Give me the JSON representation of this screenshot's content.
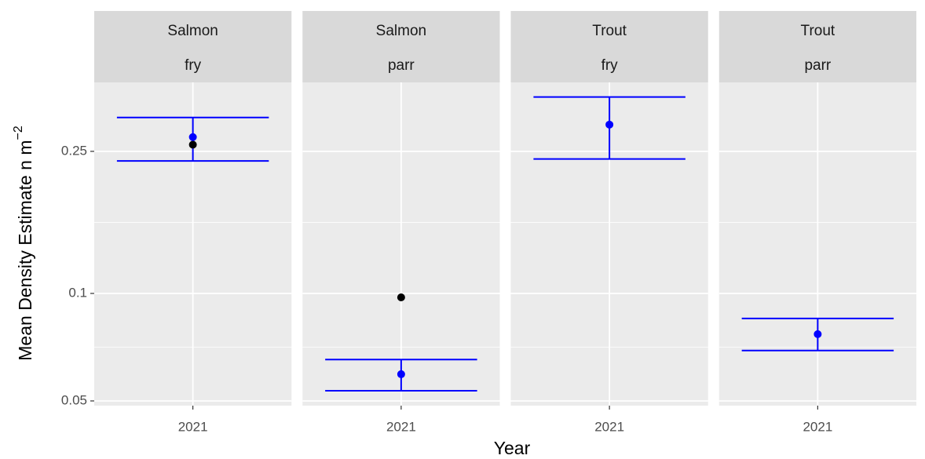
{
  "chart_data": {
    "type": "errorbar",
    "x_label": "Year",
    "y_label": "Mean Density Estimate n m",
    "y_label_superscript": "−2",
    "ylog": true,
    "ylim": [
      0.0485,
      0.39
    ],
    "yticks": [
      0.05,
      0.1,
      0.25
    ],
    "grid": true,
    "estimate_color": "#0000ff",
    "observed_color": "#000000",
    "facets": [
      {
        "strip": [
          "Salmon",
          "fry"
        ],
        "categories": [
          "2021"
        ],
        "estimate": [
          0.274
        ],
        "lower": [
          0.235
        ],
        "upper": [
          0.311
        ],
        "observed": [
          0.261
        ]
      },
      {
        "strip": [
          "Salmon",
          "parr"
        ],
        "categories": [
          "2021"
        ],
        "estimate": [
          0.0594
        ],
        "lower": [
          0.0534
        ],
        "upper": [
          0.0653
        ],
        "observed": [
          0.0975
        ]
      },
      {
        "strip": [
          "Trout",
          "fry"
        ],
        "categories": [
          "2021"
        ],
        "estimate": [
          0.297
        ],
        "lower": [
          0.238
        ],
        "upper": [
          0.355
        ],
        "observed": [
          null
        ]
      },
      {
        "strip": [
          "Trout",
          "parr"
        ],
        "categories": [
          "2021"
        ],
        "estimate": [
          0.0769
        ],
        "lower": [
          0.0692
        ],
        "upper": [
          0.0851
        ],
        "observed": [
          null
        ]
      }
    ]
  }
}
